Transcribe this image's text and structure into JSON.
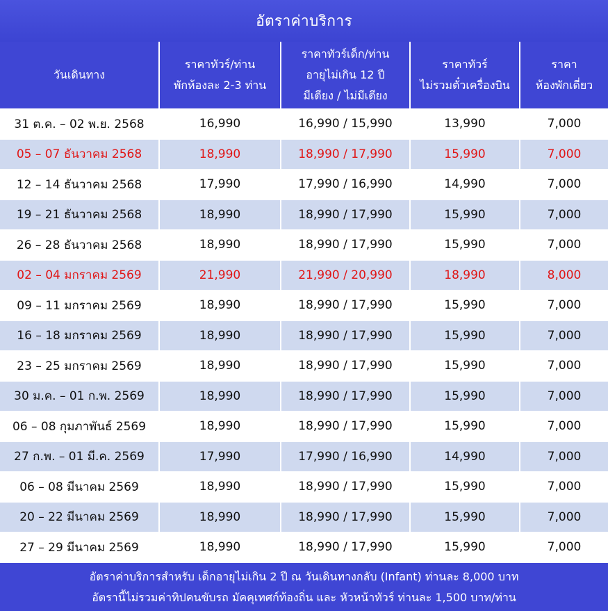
{
  "title": "อัตราค่าบริการ",
  "columns": [
    {
      "lines": [
        "วันเดินทาง"
      ]
    },
    {
      "lines": [
        "ราคาทัวร์/ท่าน",
        "พักห้องละ 2-3 ท่าน"
      ]
    },
    {
      "lines": [
        "ราคาทัวร์เด็ก/ท่าน",
        "อายุไม่เกิน 12 ปี",
        "มีเตียง / ไม่มีเตียง"
      ]
    },
    {
      "lines": [
        "ราคาทัวร์",
        "ไม่รวมตั๋วเครื่องบิน"
      ]
    },
    {
      "lines": [
        "ราคา",
        "ห้องพักเดี่ยว"
      ]
    }
  ],
  "rows": [
    {
      "date": "31 ต.ค. – 02 พ.ย. 2568",
      "adult": "16,990",
      "child": "16,990 / 15,990",
      "no_flight": "13,990",
      "single": "7,000",
      "highlight": false,
      "shaded": false
    },
    {
      "date": "05 – 07 ธันวาคม 2568",
      "adult": "18,990",
      "child": "18,990 / 17,990",
      "no_flight": "15,990",
      "single": "7,000",
      "highlight": true,
      "shaded": true
    },
    {
      "date": "12 – 14 ธันวาคม 2568",
      "adult": "17,990",
      "child": "17,990 / 16,990",
      "no_flight": "14,990",
      "single": "7,000",
      "highlight": false,
      "shaded": false
    },
    {
      "date": "19 – 21 ธันวาคม 2568",
      "adult": "18,990",
      "child": "18,990 / 17,990",
      "no_flight": "15,990",
      "single": "7,000",
      "highlight": false,
      "shaded": true
    },
    {
      "date": "26 – 28 ธันวาคม 2568",
      "adult": "18,990",
      "child": "18,990 / 17,990",
      "no_flight": "15,990",
      "single": "7,000",
      "highlight": false,
      "shaded": false
    },
    {
      "date": "02 – 04 มกราคม 2569",
      "adult": "21,990",
      "child": "21,990 / 20,990",
      "no_flight": "18,990",
      "single": "8,000",
      "highlight": true,
      "shaded": true
    },
    {
      "date": "09 – 11 มกราคม 2569",
      "adult": "18,990",
      "child": "18,990 / 17,990",
      "no_flight": "15,990",
      "single": "7,000",
      "highlight": false,
      "shaded": false
    },
    {
      "date": "16 – 18 มกราคม 2569",
      "adult": "18,990",
      "child": "18,990 / 17,990",
      "no_flight": "15,990",
      "single": "7,000",
      "highlight": false,
      "shaded": true
    },
    {
      "date": "23 – 25 มกราคม 2569",
      "adult": "18,990",
      "child": "18,990 / 17,990",
      "no_flight": "15,990",
      "single": "7,000",
      "highlight": false,
      "shaded": false
    },
    {
      "date": "30 ม.ค. – 01 ก.พ. 2569",
      "adult": "18,990",
      "child": "18,990 / 17,990",
      "no_flight": "15,990",
      "single": "7,000",
      "highlight": false,
      "shaded": true
    },
    {
      "date": "06 – 08 กุมภาพันธ์ 2569",
      "adult": "18,990",
      "child": "18,990 / 17,990",
      "no_flight": "15,990",
      "single": "7,000",
      "highlight": false,
      "shaded": false
    },
    {
      "date": "27 ก.พ. – 01 มี.ค. 2569",
      "adult": "17,990",
      "child": "17,990 / 16,990",
      "no_flight": "14,990",
      "single": "7,000",
      "highlight": false,
      "shaded": true
    },
    {
      "date": "06 – 08 มีนาคม 2569",
      "adult": "18,990",
      "child": "18,990 / 17,990",
      "no_flight": "15,990",
      "single": "7,000",
      "highlight": false,
      "shaded": false
    },
    {
      "date": "20 – 22 มีนาคม 2569",
      "adult": "18,990",
      "child": "18,990 / 17,990",
      "no_flight": "15,990",
      "single": "7,000",
      "highlight": false,
      "shaded": true
    },
    {
      "date": "27 – 29 มีนาคม 2569",
      "adult": "18,990",
      "child": "18,990 / 17,990",
      "no_flight": "15,990",
      "single": "7,000",
      "highlight": false,
      "shaded": false
    }
  ],
  "footer": {
    "line1": "อัตราค่าบริการสำหรับ เด็กอายุไม่เกิน 2 ปี ณ วันเดินทางกลับ (Infant) ท่านละ 8,000 บาท",
    "line2": "อัตรานี้ไม่รวมค่าทิปคนขับรถ มัคคุเทศก์ท้องถิ่น และ หัวหน้าทัวร์ ท่านละ 1,500 บาท/ท่าน"
  },
  "colors": {
    "header_bg": "#3f46d4",
    "row_shade": "#cfd9ef",
    "highlight_text": "#e01616"
  }
}
